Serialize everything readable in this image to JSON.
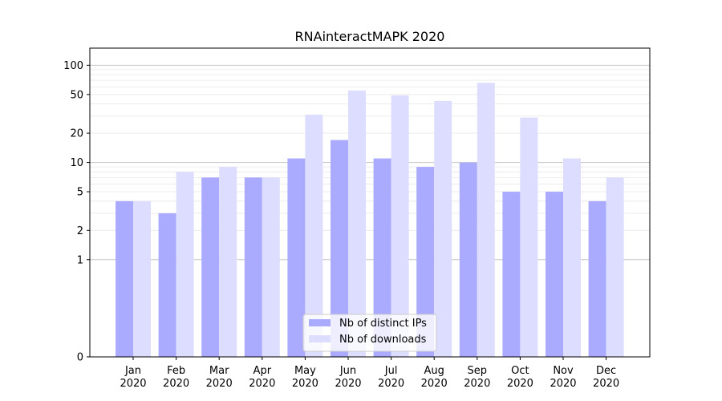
{
  "chart_data": {
    "type": "bar",
    "title": "RNAinteractMAPK 2020",
    "xlabel": "",
    "ylabel": "",
    "yscale": "symlog",
    "ylim": [
      0,
      150
    ],
    "yticks": [
      0,
      1,
      2,
      5,
      10,
      20,
      50,
      100
    ],
    "categories": [
      [
        "Jan",
        "2020"
      ],
      [
        "Feb",
        "2020"
      ],
      [
        "Mar",
        "2020"
      ],
      [
        "Apr",
        "2020"
      ],
      [
        "May",
        "2020"
      ],
      [
        "Jun",
        "2020"
      ],
      [
        "Jul",
        "2020"
      ],
      [
        "Aug",
        "2020"
      ],
      [
        "Sep",
        "2020"
      ],
      [
        "Oct",
        "2020"
      ],
      [
        "Nov",
        "2020"
      ],
      [
        "Dec",
        "2020"
      ]
    ],
    "series": [
      {
        "name": "Nb of distinct IPs",
        "color": "#aaaaff",
        "values": [
          4,
          3,
          7,
          7,
          11,
          17,
          11,
          9,
          10,
          5,
          5,
          4
        ]
      },
      {
        "name": "Nb of downloads",
        "color": "#ddddff",
        "values": [
          4,
          8,
          9,
          7,
          31,
          55,
          49,
          43,
          66,
          29,
          11,
          7
        ]
      }
    ],
    "grid": true,
    "legend": "lower-center"
  }
}
